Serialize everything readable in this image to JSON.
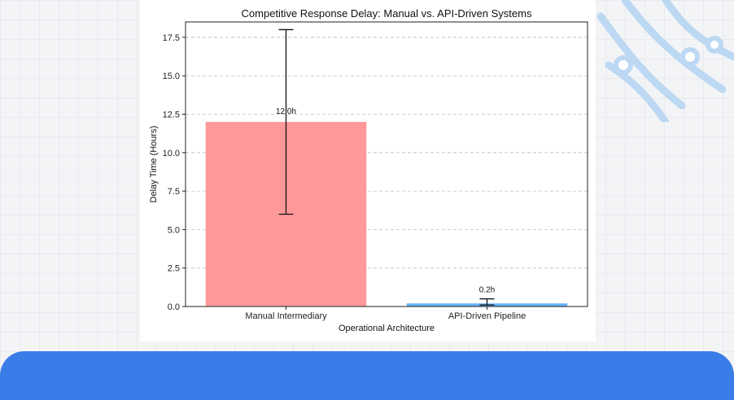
{
  "chart_data": {
    "type": "bar",
    "title": "Competitive Response Delay: Manual vs. API-Driven Systems",
    "xlabel": "Operational Architecture",
    "ylabel": "Delay Time (Hours)",
    "categories": [
      "Manual Intermediary",
      "API-Driven Pipeline"
    ],
    "values": [
      12.0,
      0.2
    ],
    "error_low": [
      6.0,
      0.1
    ],
    "error_high": [
      18.0,
      0.5
    ],
    "value_labels": [
      "12.0h",
      "0.2h"
    ],
    "bar_colors": [
      "#ff9999",
      "#66b3ff"
    ],
    "ylim": [
      0,
      18.5
    ],
    "yticks": [
      0.0,
      2.5,
      5.0,
      7.5,
      10.0,
      12.5,
      15.0,
      17.5
    ],
    "ytick_labels": [
      "0.0",
      "2.5",
      "5.0",
      "7.5",
      "10.0",
      "12.5",
      "15.0",
      "17.5"
    ],
    "grid": "y-dashed",
    "legend": "none"
  },
  "theme": {
    "band_color": "#3b7de8",
    "deco_color": "#bcd8f2"
  }
}
